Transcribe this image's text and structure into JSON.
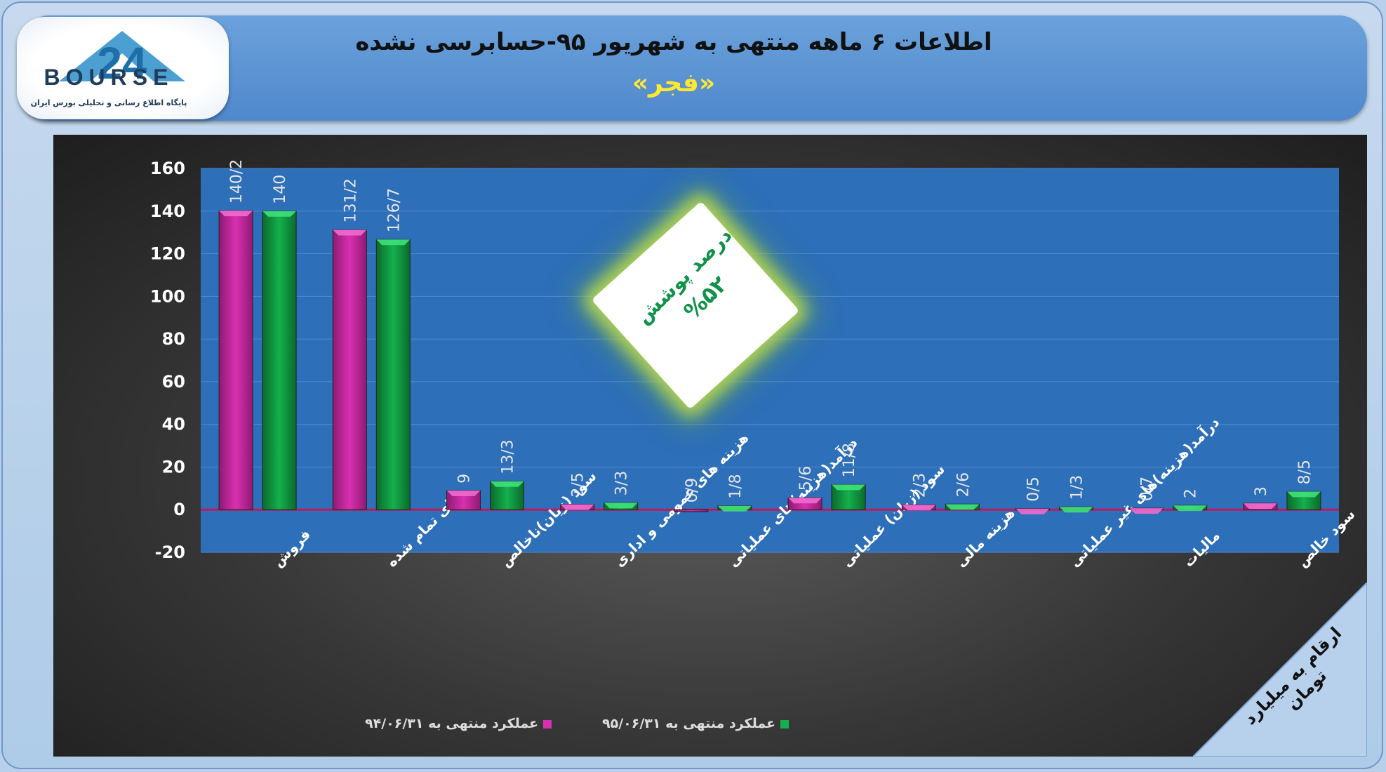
{
  "header": {
    "title": "اطلاعات ۶ ماهه منتهی به شهریور ۹۵-حسابرسی نشده",
    "subtitle": "«فجر»"
  },
  "logo": {
    "brand": "BOURSE",
    "caption": "پایگاه اطلاع رسانی و تحلیلی بورس ایران",
    "icon": "bourse24-logo"
  },
  "badge": {
    "line1": "درصد پوشش",
    "line2": "%۵۲"
  },
  "unit_label": "ارقام به میلیارد تومان",
  "colors": {
    "series_94": "#d930b0",
    "series_95": "#14b04c",
    "plot_bg": "#2d6fb8",
    "badge_text": "#11924a"
  },
  "chart_data": {
    "type": "bar",
    "title": "",
    "xlabel": "",
    "ylabel": "",
    "ylim": [
      -20,
      160
    ],
    "yticks": [
      "-20",
      "0",
      "20",
      "40",
      "60",
      "80",
      "100",
      "120",
      "140",
      "160"
    ],
    "grid": true,
    "legend_position": "bottom",
    "categories": [
      "فروش",
      "بهای تمام شده",
      "سود (زیان)ناخالص",
      "هزینه های عمومی و اداری",
      "درآمد(هزینه)های عملیاتی",
      "سود (زیان) عملیاتی",
      "هزینه مالی",
      "درآمد(هزینه)های غیر عملیاتی",
      "مالیات",
      "سود خالص"
    ],
    "series": [
      {
        "name": "عملکرد منتهی به ۹۴/۰۶/۳۱",
        "values": [
          140.2,
          131.2,
          9,
          2.5,
          -0.9,
          5.6,
          2.3,
          0.5,
          0.7,
          3
        ],
        "labels": [
          "140/2",
          "131/2",
          "9",
          "2/5",
          "0/9",
          "5/6",
          "2/3",
          "0/5",
          "0/7",
          "3"
        ]
      },
      {
        "name": "عملکرد منتهی به ۹۵/۰۶/۳۱",
        "values": [
          140,
          126.7,
          13.3,
          3.3,
          1.8,
          11.8,
          2.6,
          1.3,
          2,
          8.5
        ],
        "labels": [
          "140",
          "126/7",
          "13/3",
          "3/3",
          "1/8",
          "11/8",
          "2/6",
          "1/3",
          "2",
          "8/5"
        ]
      }
    ]
  }
}
